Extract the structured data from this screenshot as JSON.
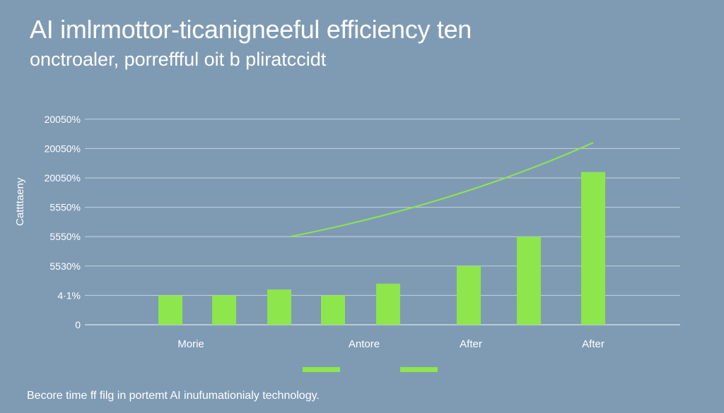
{
  "title": "AI imlrmottor-ticanigneeful efficiency ten",
  "subtitle": "onctroaler, porreffful oit b pliratccidt",
  "footer": "Becore time ff filg in portemt AI inufumationialy technology.",
  "colors": {
    "background": "#7f9bb4",
    "bar": "#8ce64c",
    "line": "#8ce64c",
    "grid": "#ffffff",
    "text": "#ffffff"
  },
  "chart_data": {
    "type": "bar",
    "ylabel": "Cattttaeny",
    "y_tick_labels": [
      "0",
      "4·1%",
      "5530%",
      "5550%",
      "5550%",
      "20050%",
      "20050%",
      "20050%"
    ],
    "x_category_labels": [
      "Morie",
      "Antore",
      "After",
      "After"
    ],
    "values": [
      1,
      1,
      1.2,
      1,
      1.4,
      2,
      3,
      5.2
    ],
    "ylim": [
      0,
      7
    ],
    "trend_line": {
      "x_index_start": 2.2,
      "x_index_end": 7.8,
      "values": [
        3.0,
        6.2
      ]
    },
    "legend_swatches": [
      "",
      ""
    ],
    "grid": true
  }
}
